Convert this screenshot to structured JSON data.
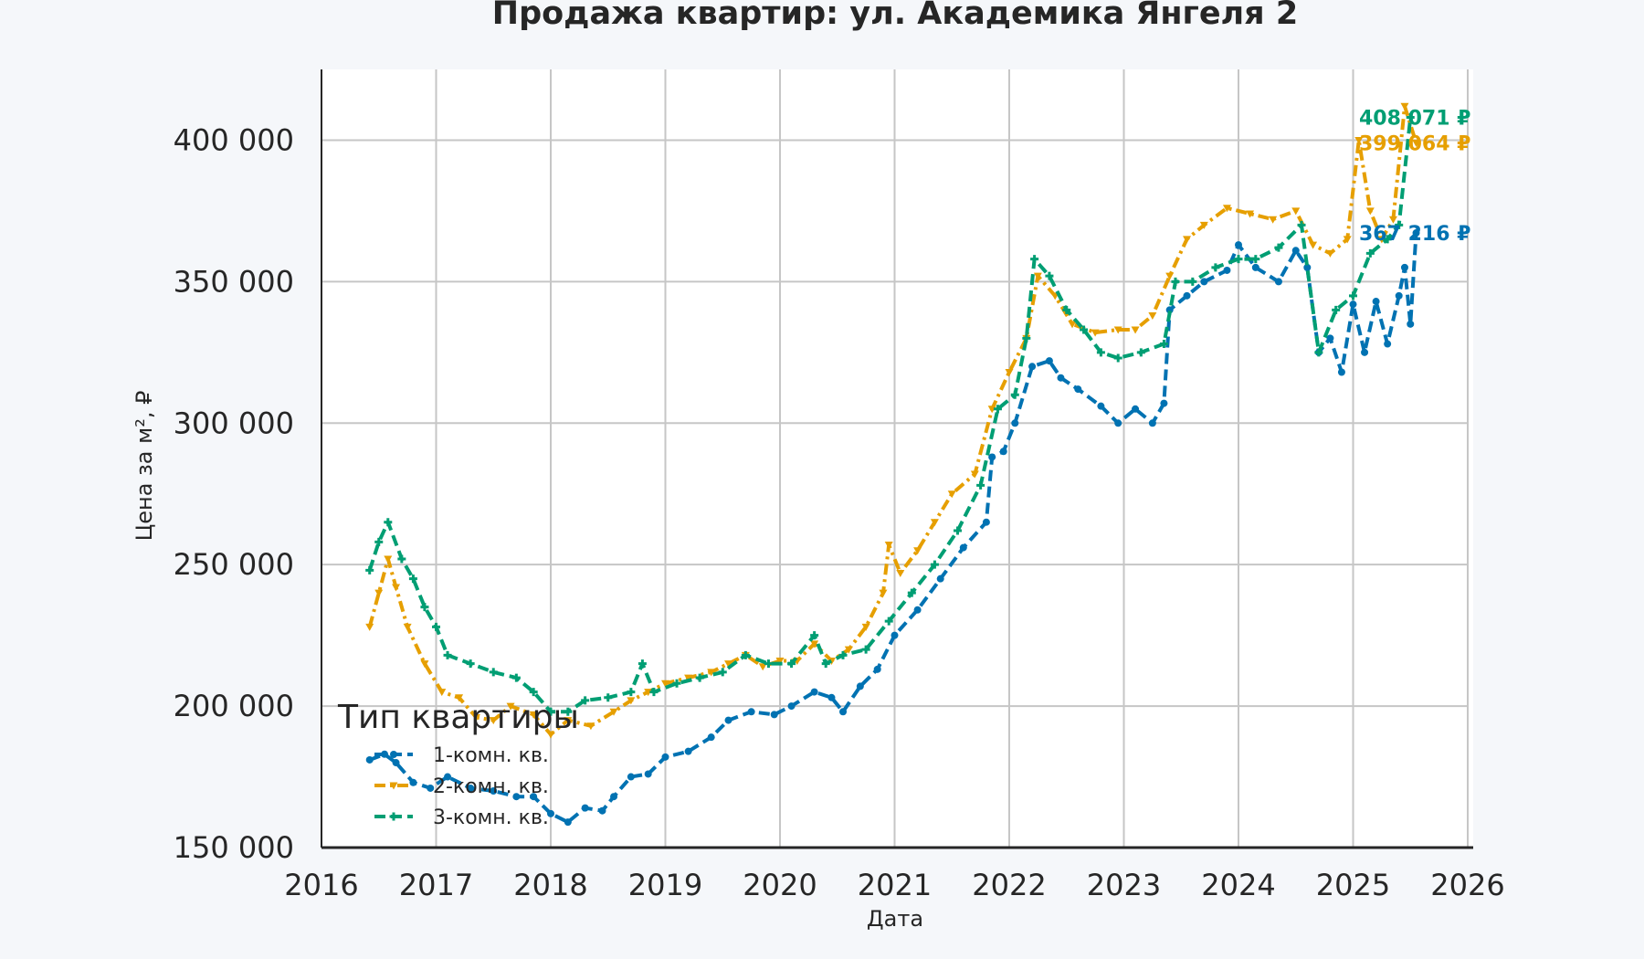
{
  "chart_data": {
    "type": "line",
    "title": "Продажа квартир: ул. Академика Янгеля 2",
    "xlabel": "Дата",
    "ylabel": "Цена за м², ₽",
    "xlim": [
      2016,
      2026
    ],
    "ylim": [
      150000,
      425000
    ],
    "x_ticks": [
      2016,
      2017,
      2018,
      2019,
      2020,
      2021,
      2022,
      2023,
      2024,
      2025,
      2026
    ],
    "x_tick_labels": [
      "2016",
      "2017",
      "2018",
      "2019",
      "2020",
      "2021",
      "2022",
      "2023",
      "2024",
      "2025",
      "2026"
    ],
    "y_ticks": [
      150000,
      200000,
      250000,
      300000,
      350000,
      400000
    ],
    "y_tick_labels": [
      "150 000",
      "200 000",
      "250 000",
      "300 000",
      "350 000",
      "400 000"
    ],
    "grid": true,
    "legend": {
      "title": "Тип квартиры",
      "placement": "lower-left"
    },
    "series": [
      {
        "name": "1-комн. кв.",
        "color": "#0072b2",
        "line_style": "dashed",
        "marker": "circle",
        "end_label": "367 216 ₽",
        "end_value": 367216,
        "points": [
          [
            2016.42,
            181000
          ],
          [
            2016.55,
            183000
          ],
          [
            2016.65,
            180000
          ],
          [
            2016.8,
            173000
          ],
          [
            2016.95,
            171000
          ],
          [
            2017.1,
            175000
          ],
          [
            2017.3,
            171000
          ],
          [
            2017.5,
            170000
          ],
          [
            2017.7,
            168000
          ],
          [
            2017.85,
            168000
          ],
          [
            2018.0,
            162000
          ],
          [
            2018.15,
            159000
          ],
          [
            2018.3,
            164000
          ],
          [
            2018.45,
            163000
          ],
          [
            2018.55,
            168000
          ],
          [
            2018.7,
            175000
          ],
          [
            2018.85,
            176000
          ],
          [
            2019.0,
            182000
          ],
          [
            2019.2,
            184000
          ],
          [
            2019.4,
            189000
          ],
          [
            2019.55,
            195000
          ],
          [
            2019.75,
            198000
          ],
          [
            2019.95,
            197000
          ],
          [
            2020.1,
            200000
          ],
          [
            2020.3,
            205000
          ],
          [
            2020.45,
            203000
          ],
          [
            2020.55,
            198000
          ],
          [
            2020.7,
            207000
          ],
          [
            2020.85,
            213000
          ],
          [
            2021.0,
            225000
          ],
          [
            2021.2,
            234000
          ],
          [
            2021.4,
            245000
          ],
          [
            2021.6,
            256000
          ],
          [
            2021.8,
            265000
          ],
          [
            2021.85,
            288000
          ],
          [
            2021.95,
            290000
          ],
          [
            2022.05,
            300000
          ],
          [
            2022.2,
            320000
          ],
          [
            2022.35,
            322000
          ],
          [
            2022.45,
            316000
          ],
          [
            2022.6,
            312000
          ],
          [
            2022.8,
            306000
          ],
          [
            2022.95,
            300000
          ],
          [
            2023.1,
            305000
          ],
          [
            2023.25,
            300000
          ],
          [
            2023.35,
            307000
          ],
          [
            2023.4,
            340000
          ],
          [
            2023.55,
            345000
          ],
          [
            2023.7,
            350000
          ],
          [
            2023.9,
            354000
          ],
          [
            2024.0,
            363000
          ],
          [
            2024.15,
            355000
          ],
          [
            2024.35,
            350000
          ],
          [
            2024.5,
            361000
          ],
          [
            2024.6,
            355000
          ],
          [
            2024.7,
            325000
          ],
          [
            2024.8,
            330000
          ],
          [
            2024.9,
            318000
          ],
          [
            2025.0,
            342000
          ],
          [
            2025.1,
            325000
          ],
          [
            2025.2,
            343000
          ],
          [
            2025.3,
            328000
          ],
          [
            2025.4,
            345000
          ],
          [
            2025.45,
            355000
          ],
          [
            2025.5,
            335000
          ],
          [
            2025.55,
            367216
          ]
        ]
      },
      {
        "name": "2-комн. кв.",
        "color": "#e69f00",
        "line_style": "dash-dot",
        "marker": "triangle-down",
        "end_label": "399 064 ₽",
        "end_value": 399064,
        "points": [
          [
            2016.42,
            228000
          ],
          [
            2016.5,
            240000
          ],
          [
            2016.58,
            252000
          ],
          [
            2016.65,
            242000
          ],
          [
            2016.75,
            228000
          ],
          [
            2016.9,
            215000
          ],
          [
            2017.05,
            205000
          ],
          [
            2017.2,
            203000
          ],
          [
            2017.35,
            196000
          ],
          [
            2017.5,
            195000
          ],
          [
            2017.65,
            200000
          ],
          [
            2017.85,
            197000
          ],
          [
            2018.0,
            190000
          ],
          [
            2018.15,
            195000
          ],
          [
            2018.35,
            193000
          ],
          [
            2018.55,
            198000
          ],
          [
            2018.7,
            202000
          ],
          [
            2018.85,
            205000
          ],
          [
            2019.0,
            208000
          ],
          [
            2019.2,
            210000
          ],
          [
            2019.4,
            212000
          ],
          [
            2019.55,
            215000
          ],
          [
            2019.7,
            218000
          ],
          [
            2019.85,
            214000
          ],
          [
            2020.0,
            216000
          ],
          [
            2020.15,
            216000
          ],
          [
            2020.3,
            222000
          ],
          [
            2020.45,
            216000
          ],
          [
            2020.6,
            220000
          ],
          [
            2020.75,
            228000
          ],
          [
            2020.9,
            240000
          ],
          [
            2020.95,
            257000
          ],
          [
            2021.05,
            247000
          ],
          [
            2021.2,
            255000
          ],
          [
            2021.35,
            265000
          ],
          [
            2021.5,
            275000
          ],
          [
            2021.7,
            282000
          ],
          [
            2021.85,
            305000
          ],
          [
            2022.0,
            318000
          ],
          [
            2022.15,
            330000
          ],
          [
            2022.25,
            352000
          ],
          [
            2022.4,
            345000
          ],
          [
            2022.55,
            335000
          ],
          [
            2022.75,
            332000
          ],
          [
            2022.95,
            333000
          ],
          [
            2023.1,
            333000
          ],
          [
            2023.25,
            338000
          ],
          [
            2023.4,
            352000
          ],
          [
            2023.55,
            365000
          ],
          [
            2023.7,
            370000
          ],
          [
            2023.9,
            376000
          ],
          [
            2024.1,
            374000
          ],
          [
            2024.3,
            372000
          ],
          [
            2024.5,
            375000
          ],
          [
            2024.65,
            363000
          ],
          [
            2024.8,
            360000
          ],
          [
            2024.95,
            365000
          ],
          [
            2025.05,
            400000
          ],
          [
            2025.15,
            375000
          ],
          [
            2025.25,
            365000
          ],
          [
            2025.35,
            372000
          ],
          [
            2025.45,
            412000
          ],
          [
            2025.55,
            399064
          ]
        ]
      },
      {
        "name": "3-комн. кв.",
        "color": "#009e73",
        "line_style": "dashed",
        "marker": "plus",
        "end_label": "408 071 ₽",
        "end_value": 408071,
        "points": [
          [
            2016.42,
            248000
          ],
          [
            2016.5,
            258000
          ],
          [
            2016.58,
            265000
          ],
          [
            2016.7,
            252000
          ],
          [
            2016.8,
            245000
          ],
          [
            2016.9,
            235000
          ],
          [
            2017.0,
            228000
          ],
          [
            2017.1,
            218000
          ],
          [
            2017.3,
            215000
          ],
          [
            2017.5,
            212000
          ],
          [
            2017.7,
            210000
          ],
          [
            2017.85,
            205000
          ],
          [
            2018.0,
            198000
          ],
          [
            2018.15,
            198000
          ],
          [
            2018.3,
            202000
          ],
          [
            2018.5,
            203000
          ],
          [
            2018.7,
            205000
          ],
          [
            2018.8,
            215000
          ],
          [
            2018.9,
            205000
          ],
          [
            2019.1,
            208000
          ],
          [
            2019.3,
            210000
          ],
          [
            2019.5,
            212000
          ],
          [
            2019.7,
            218000
          ],
          [
            2019.9,
            215000
          ],
          [
            2020.1,
            215000
          ],
          [
            2020.3,
            225000
          ],
          [
            2020.4,
            215000
          ],
          [
            2020.55,
            218000
          ],
          [
            2020.75,
            220000
          ],
          [
            2020.95,
            230000
          ],
          [
            2021.15,
            240000
          ],
          [
            2021.35,
            250000
          ],
          [
            2021.55,
            262000
          ],
          [
            2021.75,
            278000
          ],
          [
            2021.9,
            305000
          ],
          [
            2022.05,
            310000
          ],
          [
            2022.15,
            330000
          ],
          [
            2022.22,
            358000
          ],
          [
            2022.35,
            352000
          ],
          [
            2022.5,
            340000
          ],
          [
            2022.65,
            333000
          ],
          [
            2022.8,
            325000
          ],
          [
            2022.95,
            323000
          ],
          [
            2023.15,
            325000
          ],
          [
            2023.35,
            328000
          ],
          [
            2023.45,
            350000
          ],
          [
            2023.6,
            350000
          ],
          [
            2023.8,
            355000
          ],
          [
            2024.0,
            358000
          ],
          [
            2024.15,
            358000
          ],
          [
            2024.35,
            362000
          ],
          [
            2024.55,
            370000
          ],
          [
            2024.7,
            325000
          ],
          [
            2024.85,
            340000
          ],
          [
            2025.0,
            345000
          ],
          [
            2025.15,
            360000
          ],
          [
            2025.3,
            365000
          ],
          [
            2025.4,
            370000
          ],
          [
            2025.5,
            408071
          ]
        ]
      }
    ]
  }
}
